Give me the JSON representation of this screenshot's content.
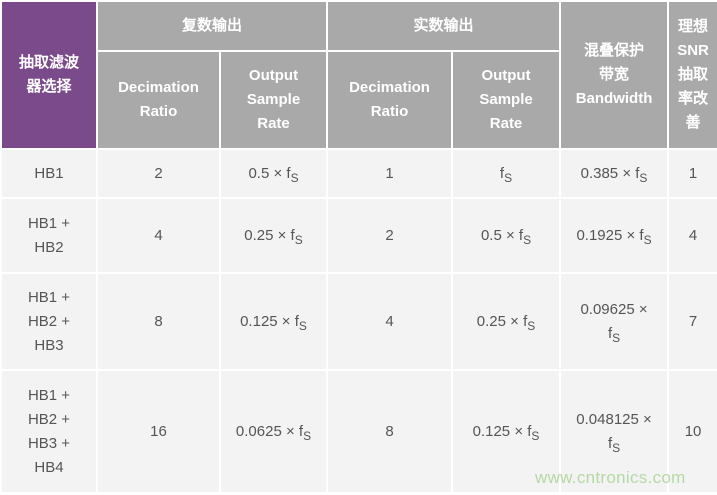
{
  "header": {
    "filter_select": "抽取滤波\n器选择",
    "complex_output": "复数输出",
    "real_output": "实数输出",
    "alias_bandwidth": "混叠保护\n带宽\nBandwidth",
    "snr_improvement": "理想\nSNR\n抽取\n率改\n善",
    "decimation_ratio": "Decimation\nRatio",
    "output_sample_rate": "Output\nSample\nRate"
  },
  "rows": [
    {
      "filter": "HB1",
      "c_ratio": "2",
      "c_rate": {
        "pre": "0.5 × f",
        "sub": "S"
      },
      "r_ratio": "1",
      "r_rate": {
        "pre": "f",
        "sub": "S"
      },
      "bw": {
        "pre": "0.385 × f",
        "sub": "S"
      },
      "snr": "1"
    },
    {
      "filter": "HB1 +\nHB2",
      "c_ratio": "4",
      "c_rate": {
        "pre": "0.25 × f",
        "sub": "S"
      },
      "r_ratio": "2",
      "r_rate": {
        "pre": "0.5 × f",
        "sub": "S"
      },
      "bw": {
        "pre": "0.1925 × f",
        "sub": "S"
      },
      "snr": "4"
    },
    {
      "filter": "HB1 +\nHB2 +\nHB3",
      "c_ratio": "8",
      "c_rate": {
        "pre": "0.125 × f",
        "sub": "S"
      },
      "r_ratio": "4",
      "r_rate": {
        "pre": "0.25 × f",
        "sub": "S"
      },
      "bw": {
        "pre": "0.09625 ×\nf",
        "sub": "S"
      },
      "snr": "7"
    },
    {
      "filter": "HB1 +\nHB2 +\nHB3 +\nHB4",
      "c_ratio": "16",
      "c_rate": {
        "pre": "0.0625 × f",
        "sub": "S"
      },
      "r_ratio": "8",
      "r_rate": {
        "pre": "0.125 × f",
        "sub": "S"
      },
      "bw": {
        "pre": "0.048125 ×\nf",
        "sub": "S"
      },
      "snr": "10"
    }
  ],
  "watermark": "www.cntronics.com",
  "colors": {
    "purple": "#7b4a8b",
    "header_gray": "#a9a9a9",
    "cell_bg": "#f3f3f3",
    "watermark": "#b5d9a5"
  }
}
